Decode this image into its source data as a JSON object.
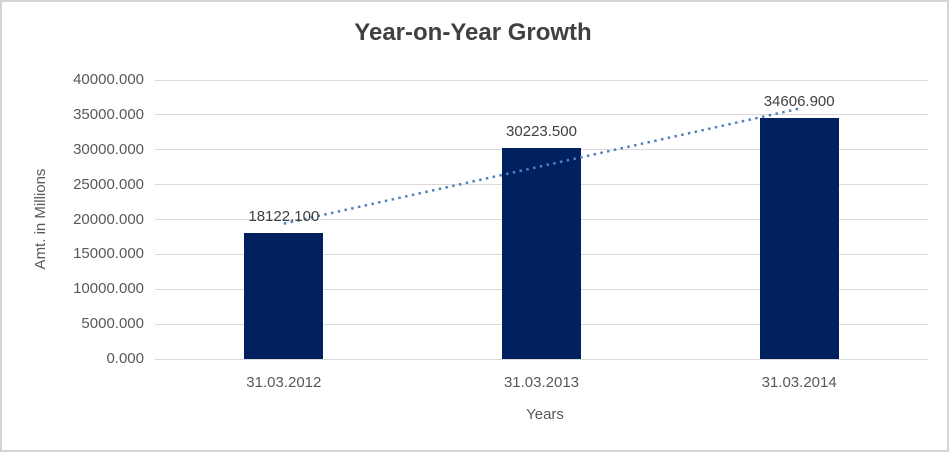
{
  "chart_data": {
    "type": "bar",
    "title": "Year-on-Year Growth",
    "categories": [
      "31.03.2012",
      "31.03.2013",
      "31.03.2014"
    ],
    "values": [
      18122.1,
      30223.5,
      34606.9
    ],
    "value_labels": [
      "18122.100",
      "30223.500",
      "34606.900"
    ],
    "xlabel": "Years",
    "ylabel": "Amt. in Millions",
    "ylim": [
      0,
      40000
    ],
    "ytick_step": 5000,
    "ytick_labels": [
      "0.000",
      "5000.000",
      "10000.000",
      "15000.000",
      "20000.000",
      "25000.000",
      "30000.000",
      "35000.000",
      "40000.000"
    ],
    "grid": true,
    "legend": "none",
    "trendline": {
      "type": "linear",
      "style": "dotted"
    },
    "colors": {
      "bar": "#002060",
      "trendline": "#4F81BD",
      "gridline": "#D9D9D9",
      "axis_text": "#595959",
      "label_text": "#404040",
      "title_text": "#404040",
      "border": "#D4D4D4",
      "background": "#FFFFFF"
    }
  }
}
